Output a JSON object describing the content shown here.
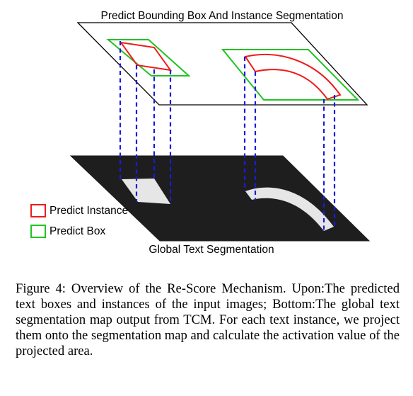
{
  "diagram": {
    "top_label": "Predict Bounding Box And Instance Segmentation",
    "bottom_label": "Global Text Segmentation",
    "legend": [
      {
        "label": "Predict Instance",
        "color": "#ee1c1c"
      },
      {
        "label": "Predict Box",
        "color": "#22c322"
      }
    ],
    "colors": {
      "instance": "#ee1c1c",
      "box": "#22c322",
      "projection": "#1b1bd9",
      "segmentation_map": "#1e1e1e",
      "activation_region": "#e6e6e6"
    }
  },
  "caption": {
    "text": "Figure 4: Overview of the Re-Score Mechanism. Upon:The predicted text boxes and instances of the input images; Bottom:The global text segmentation map output from TCM. For each text instance, we project them onto the segmentation map and calculate the activation value of the projected area."
  }
}
